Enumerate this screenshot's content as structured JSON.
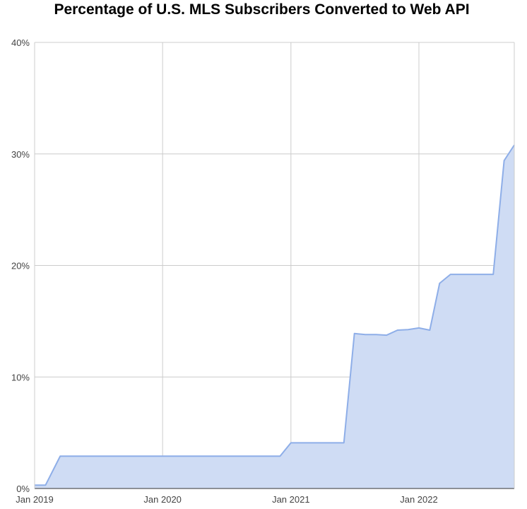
{
  "chart_data": {
    "type": "area",
    "title": "Percentage of U.S. MLS Subscribers Converted to Web API",
    "xlabel": "",
    "ylabel": "",
    "x_axis": {
      "type": "date",
      "range": [
        "2019-01-01",
        "2022-09-30"
      ],
      "ticks": [
        {
          "date": "2019-01-01",
          "label": "Jan 2019"
        },
        {
          "date": "2020-01-01",
          "label": "Jan 2020"
        },
        {
          "date": "2021-01-01",
          "label": "Jan 2021"
        },
        {
          "date": "2022-01-01",
          "label": "Jan 2022"
        }
      ]
    },
    "y_axis": {
      "unit": "percent",
      "range": [
        0,
        40
      ],
      "ticks": [
        {
          "value": 0,
          "label": "0%"
        },
        {
          "value": 10,
          "label": "10%"
        },
        {
          "value": 20,
          "label": "20%"
        },
        {
          "value": 30,
          "label": "30%"
        },
        {
          "value": 40,
          "label": "40%"
        }
      ]
    },
    "grid": true,
    "legend": "none",
    "series": [
      {
        "color": "#8eaee8",
        "fill_color": "#cfdcf4",
        "points": [
          {
            "x": "2019-01-01",
            "y": 0.3
          },
          {
            "x": "2019-02-01",
            "y": 0.3
          },
          {
            "x": "2019-03-15",
            "y": 2.9
          },
          {
            "x": "2020-12-01",
            "y": 2.9
          },
          {
            "x": "2021-01-01",
            "y": 4.1
          },
          {
            "x": "2021-05-01",
            "y": 4.1
          },
          {
            "x": "2021-06-01",
            "y": 4.1
          },
          {
            "x": "2021-07-01",
            "y": 13.9
          },
          {
            "x": "2021-08-01",
            "y": 13.8
          },
          {
            "x": "2021-09-01",
            "y": 13.8
          },
          {
            "x": "2021-10-01",
            "y": 13.75
          },
          {
            "x": "2021-11-01",
            "y": 14.2
          },
          {
            "x": "2021-12-01",
            "y": 14.25
          },
          {
            "x": "2022-01-01",
            "y": 14.4
          },
          {
            "x": "2022-02-01",
            "y": 14.2
          },
          {
            "x": "2022-03-01",
            "y": 18.4
          },
          {
            "x": "2022-04-01",
            "y": 19.2
          },
          {
            "x": "2022-08-01",
            "y": 19.2
          },
          {
            "x": "2022-09-01",
            "y": 29.4
          },
          {
            "x": "2022-09-30",
            "y": 30.8
          }
        ]
      }
    ]
  }
}
